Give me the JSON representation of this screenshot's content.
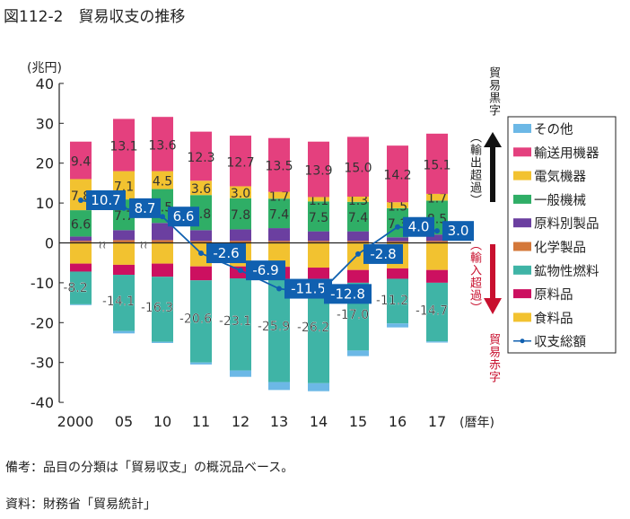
{
  "title": "図112-2　貿易収支の推移",
  "notes": {
    "remark": "備考：品目の分類は「貿易収支」の概況品ベース。",
    "source": "資料：財務省「貿易統計」"
  },
  "chart_data": {
    "type": "bar",
    "stacked": true,
    "title": "",
    "ylabel": "(兆円)",
    "xlabel": "(暦年)",
    "ylim": [
      -40,
      40
    ],
    "yticks": [
      40,
      30,
      20,
      10,
      0,
      -10,
      -20,
      -30,
      -40
    ],
    "categories": [
      "2000",
      "05",
      "10",
      "11",
      "12",
      "13",
      "14",
      "15",
      "16",
      "17"
    ],
    "annotations": {
      "surplus": "貿易黒字",
      "export_excess": "（輸出超過）",
      "import_excess": "（輸入超過）",
      "deficit": "貿易赤字"
    },
    "legend_position": "right",
    "series": [
      {
        "name": "化学製品",
        "color": "#d4783a",
        "values": [
          0.5,
          0.7,
          0.7,
          0.5,
          0.5,
          0.5,
          0.5,
          0.5,
          0.4,
          0.5
        ],
        "labeled": false
      },
      {
        "name": "原料別製品",
        "color": "#6b3fa0",
        "values": [
          1.1,
          2.5,
          4.3,
          2.7,
          2.9,
          3.2,
          2.4,
          2.4,
          1.0,
          1.6
        ],
        "labeled": false
      },
      {
        "name": "一般機械",
        "color": "#2fae66",
        "values": [
          6.6,
          7.7,
          8.5,
          8.8,
          7.8,
          7.4,
          7.5,
          7.4,
          7.3,
          8.5
        ],
        "labeled": true
      },
      {
        "name": "電気機器",
        "color": "#f2c230",
        "values": [
          7.8,
          7.1,
          4.5,
          3.6,
          3.0,
          1.7,
          1.1,
          1.3,
          1.5,
          1.7
        ],
        "labeled": true
      },
      {
        "name": "輸送用機器",
        "color": "#e4407e",
        "values": [
          9.4,
          13.1,
          13.6,
          12.3,
          12.7,
          13.5,
          13.9,
          15.0,
          14.2,
          15.1
        ],
        "labeled": true
      },
      {
        "name": "食料品",
        "color": "#f2c230",
        "values": [
          -5.2,
          -5.5,
          -5.2,
          -5.9,
          -5.9,
          -6.0,
          -6.2,
          -6.8,
          -6.4,
          -6.8
        ],
        "labeled": false
      },
      {
        "name": "原料品",
        "color": "#cc1060",
        "values": [
          -2.0,
          -2.5,
          -3.3,
          -3.5,
          -3.0,
          -3.0,
          -2.8,
          -3.2,
          -2.6,
          -3.2
        ],
        "labeled": false
      },
      {
        "name": "鉱物性燃料",
        "color": "#3fb4a6",
        "values": [
          -8.2,
          -14.1,
          -16.3,
          -20.6,
          -23.1,
          -25.9,
          -26.2,
          -17.0,
          -11.2,
          -14.7
        ],
        "labeled": true
      },
      {
        "name": "その他",
        "color": "#6cb8e6",
        "values": [
          -0.2,
          -0.6,
          -0.3,
          -0.5,
          -1.6,
          -2.0,
          -2.0,
          -1.4,
          -1.0,
          -0.3
        ],
        "labeled": false
      }
    ],
    "legend_order": [
      "その他",
      "輸送用機器",
      "電気機器",
      "一般機械",
      "原料別製品",
      "化学製品",
      "鉱物性燃料",
      "原料品",
      "食料品",
      "収支総額"
    ],
    "balance": {
      "name": "収支総額",
      "color": "#1060b0",
      "values": [
        10.7,
        8.7,
        6.6,
        -2.6,
        -6.9,
        -11.5,
        -12.8,
        -2.8,
        4.0,
        3.0
      ]
    }
  }
}
